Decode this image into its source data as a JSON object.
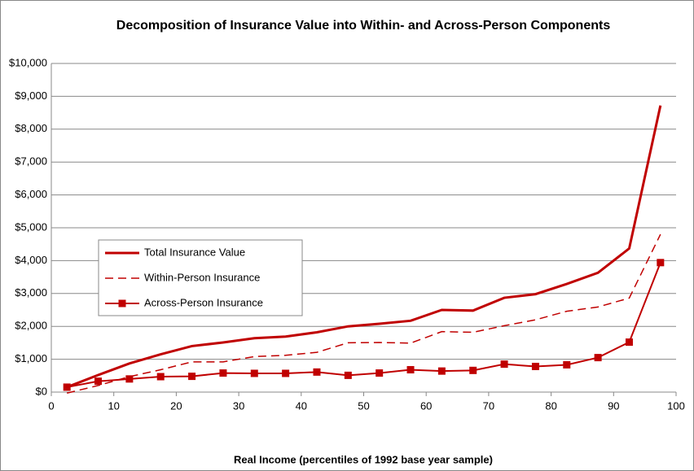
{
  "chart_data": {
    "type": "line",
    "title": "Decomposition of Insurance Value into Within- and Across-Person Components",
    "xlabel": "Real Income (percentiles of 1992 base year sample)",
    "x": [
      2.5,
      7.5,
      12.5,
      17.5,
      22.5,
      27.5,
      32.5,
      37.5,
      42.5,
      47.5,
      52.5,
      57.5,
      62.5,
      67.5,
      72.5,
      77.5,
      82.5,
      87.5,
      92.5,
      97.5
    ],
    "series": [
      {
        "name": "Total Insurance Value",
        "color": "#c00000",
        "style": "solid",
        "values": [
          150,
          520,
          870,
          1150,
          1400,
          1510,
          1640,
          1690,
          1820,
          2000,
          2080,
          2170,
          2500,
          2480,
          2870,
          2980,
          3290,
          3630,
          4370,
          8720
        ]
      },
      {
        "name": "Within-Person Insurance",
        "color": "#c00000",
        "style": "dashed",
        "values": [
          -30,
          200,
          470,
          680,
          920,
          920,
          1080,
          1120,
          1210,
          1500,
          1510,
          1490,
          1840,
          1820,
          2020,
          2200,
          2460,
          2590,
          2860,
          4800
        ]
      },
      {
        "name": "Across-Person Insurance",
        "color": "#c00000",
        "style": "square-markers",
        "values": [
          150,
          330,
          400,
          470,
          480,
          580,
          570,
          570,
          610,
          510,
          580,
          680,
          640,
          660,
          850,
          780,
          830,
          1050,
          1520,
          3940
        ]
      }
    ],
    "xlim": [
      0,
      100
    ],
    "xticks": [
      0,
      10,
      20,
      30,
      40,
      50,
      60,
      70,
      80,
      90,
      100
    ],
    "ylim": [
      0,
      10000
    ],
    "yticks": [
      {
        "value": 0,
        "label": "$0"
      },
      {
        "value": 1000,
        "label": "$1,000"
      },
      {
        "value": 2000,
        "label": "$2,000"
      },
      {
        "value": 3000,
        "label": "$3,000"
      },
      {
        "value": 4000,
        "label": "$4,000"
      },
      {
        "value": 5000,
        "label": "$5,000"
      },
      {
        "value": 6000,
        "label": "$6,000"
      },
      {
        "value": 7000,
        "label": "$7,000"
      },
      {
        "value": 8000,
        "label": "$8,000"
      },
      {
        "value": 9000,
        "label": "$9,000"
      },
      {
        "value": 10000,
        "label": "$10,000"
      }
    ],
    "grid": true,
    "legend": "left"
  }
}
